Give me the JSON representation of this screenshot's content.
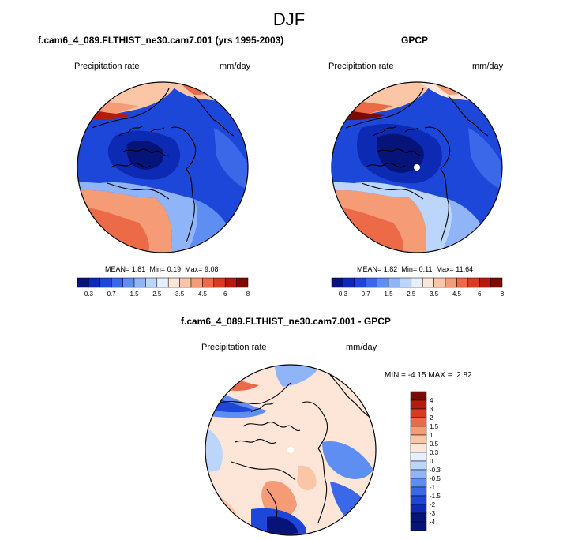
{
  "figure": {
    "title": "DJF"
  },
  "colors": {
    "abs_scale": [
      "#06147a",
      "#0c2ab4",
      "#1c47d8",
      "#3a68e8",
      "#5f8ef2",
      "#8fb4f8",
      "#bcd6fb",
      "#e6f0fd",
      "#fde6d8",
      "#fbc6a6",
      "#f59c76",
      "#ec6a48",
      "#d93a22",
      "#b51a0c",
      "#7a0a04"
    ],
    "diff_scale": [
      "#06147a",
      "#0c2ab4",
      "#1c47d8",
      "#3a68e8",
      "#5f8ef2",
      "#8fb4f8",
      "#bcd6fb",
      "#e6f0fd",
      "#fde6d8",
      "#fbc6a6",
      "#f59c76",
      "#ec6a48",
      "#d93a22",
      "#b51a0c",
      "#7a0a04"
    ]
  },
  "panels": {
    "model": {
      "title": "f.cam6_4_089.FLTHIST_ne30.cam7.001 (yrs 1995-2003)",
      "variable": "Precipitation rate",
      "units": "mm/day",
      "mean_label": "MEAN=",
      "mean": "1.81",
      "min_label": "Min=",
      "min": "0.19",
      "max_label": "Max=",
      "max": "9.08"
    },
    "obs": {
      "title": "GPCP",
      "variable": "Precipitation rate",
      "units": "mm/day",
      "mean_label": "MEAN=",
      "mean": "1.82",
      "min_label": "Min=",
      "min": "0.11",
      "max_label": "Max=",
      "max": "11.64"
    },
    "diff": {
      "title": "f.cam6_4_089.FLTHIST_ne30.cam7.001 - GPCP",
      "variable": "Precipitation rate",
      "units": "mm/day",
      "min_label": "MIN =",
      "min": "-4.15",
      "max_label": "MAX =",
      "max": "2.82"
    }
  },
  "colorbars": {
    "abs_ticks": [
      "0.3",
      "0.7",
      "1.5",
      "2.5",
      "3.5",
      "4.5",
      "6",
      "8"
    ],
    "diff_ticks": [
      "4",
      "3",
      "2",
      "1.5",
      "1",
      "0.5",
      "0.3",
      "0",
      "-0.3",
      "-0.5",
      "-1",
      "-1.5",
      "-2",
      "-3",
      "-4"
    ]
  }
}
